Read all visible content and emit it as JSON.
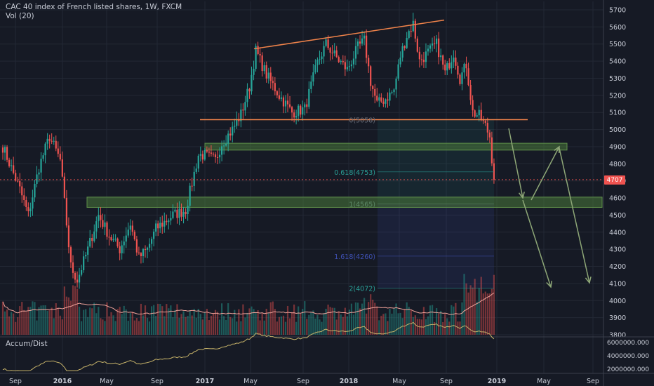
{
  "symbol_title": "CAC 40 index of French listed shares, 1W, FXCM",
  "volume_label": "Vol (20)",
  "lower_pane_label": "Accum/Dist",
  "last_price_label": "4707",
  "colors": {
    "background": "#161a25",
    "up": "#26a69a",
    "down": "#ef5350",
    "trendline": "#f0834a",
    "zone": "#4b7a3a",
    "arrow": "#8ea777",
    "fib_teal": "#2aa198",
    "fib_blue": "#3f51b5",
    "volume_ma": "#f2a49b",
    "accum_dist": "#c8b46a"
  },
  "chart_data": {
    "type": "candlestick",
    "y_ticks": [
      3800,
      3900,
      4000,
      4100,
      4200,
      4300,
      4400,
      4500,
      4600,
      4700,
      4800,
      4900,
      5000,
      5100,
      5200,
      5300,
      5400,
      5500,
      5600,
      5700
    ],
    "ylim": [
      3780,
      5760
    ],
    "x_ticks": [
      "Sep",
      "2016",
      "May",
      "Sep",
      "2017",
      "May",
      "Sep",
      "2018",
      "May",
      "Sep",
      "2019",
      "May",
      "Sep"
    ],
    "fib_levels": [
      {
        "label": "0(5058)",
        "value": 5058
      },
      {
        "label": "0.618(4753)",
        "value": 4753
      },
      {
        "label": "1(4565)",
        "value": 4565
      },
      {
        "label": "1.618(4260)",
        "value": 4260
      },
      {
        "label": "2(4072)",
        "value": 4072
      }
    ],
    "horizontal_line": 5058,
    "zones": [
      [
        4880,
        4920
      ],
      [
        4545,
        4605
      ]
    ],
    "anchors": [
      {
        "t": 0,
        "v": 4900
      },
      {
        "t": 8,
        "v": 4650
      },
      {
        "t": 12,
        "v": 4500
      },
      {
        "t": 17,
        "v": 4780
      },
      {
        "t": 22,
        "v": 4960
      },
      {
        "t": 27,
        "v": 4820
      },
      {
        "t": 32,
        "v": 4200
      },
      {
        "t": 35,
        "v": 4120
      },
      {
        "t": 40,
        "v": 4300
      },
      {
        "t": 45,
        "v": 4500
      },
      {
        "t": 50,
        "v": 4380
      },
      {
        "t": 55,
        "v": 4300
      },
      {
        "t": 60,
        "v": 4450
      },
      {
        "t": 64,
        "v": 4250
      },
      {
        "t": 68,
        "v": 4300
      },
      {
        "t": 72,
        "v": 4420
      },
      {
        "t": 80,
        "v": 4500
      },
      {
        "t": 86,
        "v": 4530
      },
      {
        "t": 92,
        "v": 4850
      },
      {
        "t": 95,
        "v": 4850
      },
      {
        "t": 100,
        "v": 4820
      },
      {
        "t": 103,
        "v": 4920
      },
      {
        "t": 108,
        "v": 5000
      },
      {
        "t": 112,
        "v": 5090
      },
      {
        "t": 116,
        "v": 5250
      },
      {
        "t": 119,
        "v": 5460
      },
      {
        "t": 124,
        "v": 5320
      },
      {
        "t": 130,
        "v": 5200
      },
      {
        "t": 136,
        "v": 5100
      },
      {
        "t": 142,
        "v": 5120
      },
      {
        "t": 148,
        "v": 5390
      },
      {
        "t": 152,
        "v": 5500
      },
      {
        "t": 157,
        "v": 5420
      },
      {
        "t": 162,
        "v": 5350
      },
      {
        "t": 167,
        "v": 5480
      },
      {
        "t": 170,
        "v": 5520
      },
      {
        "t": 173,
        "v": 5280
      },
      {
        "t": 176,
        "v": 5150
      },
      {
        "t": 180,
        "v": 5180
      },
      {
        "t": 184,
        "v": 5230
      },
      {
        "t": 187,
        "v": 5430
      },
      {
        "t": 190,
        "v": 5550
      },
      {
        "t": 193,
        "v": 5620
      },
      {
        "t": 196,
        "v": 5400
      },
      {
        "t": 200,
        "v": 5450
      },
      {
        "t": 204,
        "v": 5500
      },
      {
        "t": 208,
        "v": 5330
      },
      {
        "t": 212,
        "v": 5450
      },
      {
        "t": 215,
        "v": 5300
      },
      {
        "t": 218,
        "v": 5380
      },
      {
        "t": 221,
        "v": 5100
      },
      {
        "t": 224,
        "v": 5080
      },
      {
        "t": 227,
        "v": 5020
      },
      {
        "t": 229,
        "v": 4960
      },
      {
        "t": 231,
        "v": 4707
      }
    ],
    "series": [
      {
        "name": "Vol (20)",
        "type": "volume"
      },
      {
        "name": "Accum/Dist",
        "type": "line",
        "ticks": [
          "6000000.000",
          "4000000.000",
          "2000000.000"
        ],
        "ylim": [
          1500000,
          6600000
        ]
      }
    ]
  }
}
